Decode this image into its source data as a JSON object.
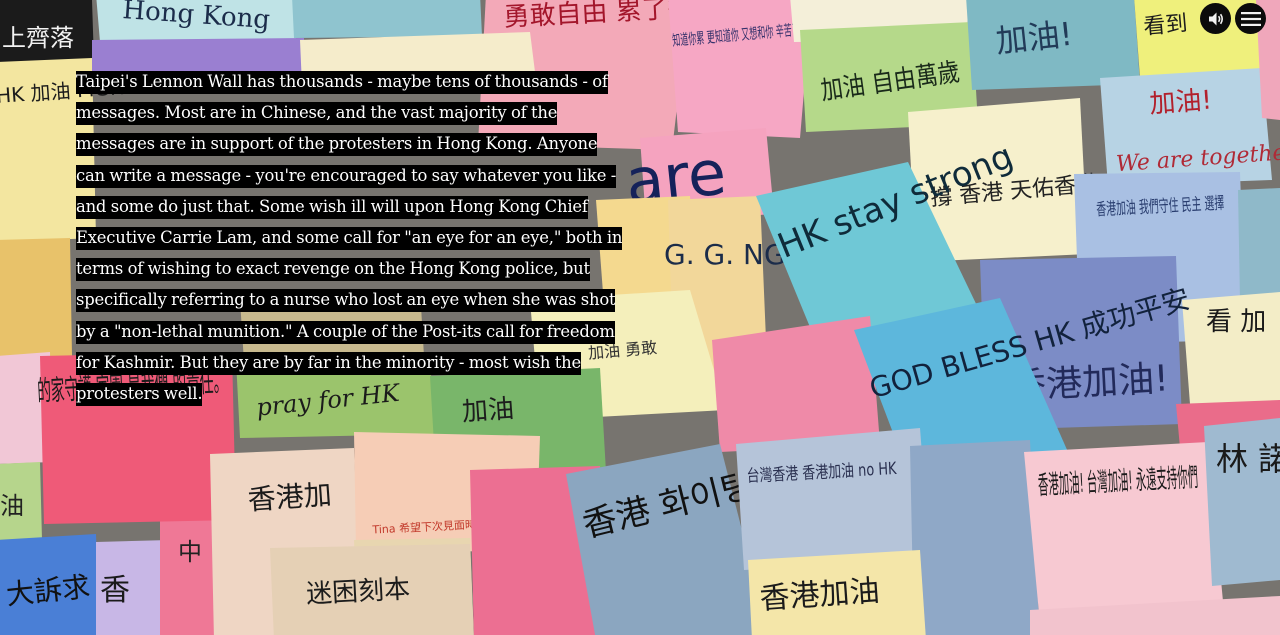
{
  "caption": {
    "text": "Taipei's Lennon Wall has thousands - maybe tens of thousands - of messages. Most are in Chinese, and the vast majority of the messages are in support of the protesters in Hong Kong. Anyone can write a message - you're encouraged to say whatever you like - and some do just that. Some wish ill will upon Hong Kong Chief Executive Carrie Lam, and some call for \"an eye for an eye,\" both in terms of wishing to exact revenge on the Hong Kong police, but specifically referring to a nurse who lost an eye when she was shot by a \"non-lethal munition.\" A couple of the Post-its call for freedom for Kashmir. But they are by far in the minority - most wish the protesters well."
  },
  "controls": {
    "sound_icon": "speaker-icon",
    "menu_icon": "hamburger-menu-icon"
  },
  "notes": [
    {
      "text": "Hong Kong",
      "color": "#bfe3e6"
    },
    {
      "text": "上齊落",
      "color": "#1b1b1b"
    },
    {
      "text": "勇敢自由 累了行",
      "color": "#f3a9b8"
    },
    {
      "text": "知道你累 更知道你 又想和你 辛苦了",
      "color": "#f6a7c4"
    },
    {
      "text": "加油 自由萬歲",
      "color": "#b5d98a"
    },
    {
      "text": "加油!",
      "color": "#7fb9c4"
    },
    {
      "text": "看到",
      "color": "#eff07c"
    },
    {
      "text": "加油!",
      "color": "#b7d3e4"
    },
    {
      "text": "We are together",
      "color": "#c9dbe8"
    },
    {
      "text": "HK 加油 FIGHTING!! 由!!",
      "color": "#f3e6a0"
    },
    {
      "text": "are",
      "color": "#f5a3bf"
    },
    {
      "text": "撐 香港 天佑香港",
      "color": "#f6f0cc"
    },
    {
      "text": "HK stay strong",
      "color": "#6fc8d6"
    },
    {
      "text": "香港加油 我們守住 民主 選擇",
      "color": "#a9c0e3"
    },
    {
      "text": "G. G. NG!",
      "color": "#f2d79a"
    },
    {
      "text": "加油 勇敢",
      "color": "#f4efbb"
    },
    {
      "text": "GOD BLESS HK 成功平安",
      "color": "#5db7dc"
    },
    {
      "text": "香港加油!",
      "color": "#8f9fcc"
    },
    {
      "text": "看 加",
      "color": "#f3edc7"
    },
    {
      "text": "pray for HK",
      "color": "#9bc46c"
    },
    {
      "text": "加油",
      "color": "#79b66a"
    },
    {
      "text": "的家守護 家園,是我們 的責任。",
      "color": "#ef5a78"
    },
    {
      "text": "香港加",
      "color": "#efd6c4"
    },
    {
      "text": "Tina 希望下次見面時 香港已經是",
      "color": "#f6cdb6"
    },
    {
      "text": "香港 화이팅!",
      "color": "#8ba6c0"
    },
    {
      "text": "台灣香港 香港加油 no HK",
      "color": "#b5c4d9"
    },
    {
      "text": "香港加油! 台灣加油! 永遠支持你們",
      "color": "#f7c9d2"
    },
    {
      "text": "林 諾",
      "color": "#9fbad0"
    },
    {
      "text": "迷困刻本",
      "color": "#e5d0b5"
    },
    {
      "text": "香港加油",
      "color": "#f4e6a9"
    },
    {
      "text": "大訴求",
      "color": "#4a7fd6"
    },
    {
      "text": "香",
      "color": "#c8b7e6"
    },
    {
      "text": "中",
      "color": "#ef7896"
    },
    {
      "text": "油",
      "color": "#efe2a3"
    }
  ]
}
